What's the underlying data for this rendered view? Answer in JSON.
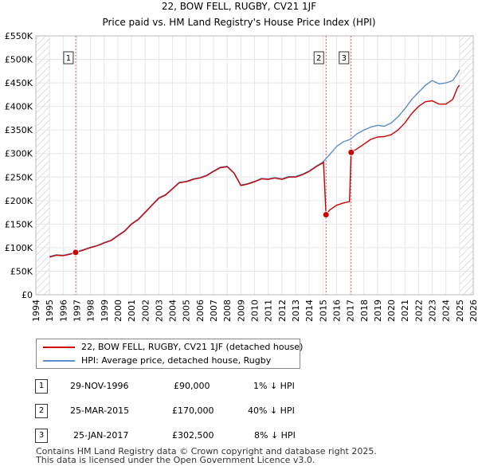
{
  "title": "22, BOW FELL, RUGBY, CV21 1JF",
  "subtitle": "Price paid vs. HM Land Registry's House Price Index (HPI)",
  "chart_data": {
    "type": "line",
    "title": "22, BOW FELL, RUGBY, CV21 1JF",
    "subtitle": "Price paid vs. HM Land Registry's House Price Index (HPI)",
    "xlabel": "",
    "ylabel": "",
    "xlim": [
      1994,
      2026
    ],
    "ylim": [
      0,
      550000
    ],
    "grid": true,
    "yticks": [
      0,
      50000,
      100000,
      150000,
      200000,
      250000,
      300000,
      350000,
      400000,
      450000,
      500000,
      550000
    ],
    "ytick_labels": [
      "£0",
      "£50K",
      "£100K",
      "£150K",
      "£200K",
      "£250K",
      "£300K",
      "£350K",
      "£400K",
      "£450K",
      "£500K",
      "£550K"
    ],
    "xticks": [
      1994,
      1995,
      1996,
      1997,
      1998,
      1999,
      2000,
      2001,
      2002,
      2003,
      2004,
      2005,
      2006,
      2007,
      2008,
      2009,
      2010,
      2011,
      2012,
      2013,
      2014,
      2015,
      2016,
      2017,
      2018,
      2019,
      2020,
      2021,
      2022,
      2023,
      2024,
      2025,
      2026
    ],
    "xtick_labels": [
      "1994",
      "1995",
      "1996",
      "1997",
      "1998",
      "1999",
      "2000",
      "2001",
      "2002",
      "2003",
      "2004",
      "2005",
      "2006",
      "2007",
      "2008",
      "2009",
      "2010",
      "2011",
      "2012",
      "2013",
      "2014",
      "2015",
      "2016",
      "2017",
      "2018",
      "2019",
      "2020",
      "2021",
      "2022",
      "2023",
      "2024",
      "2025",
      "2026"
    ],
    "series": [
      {
        "name": "22, BOW FELL, RUGBY, CV21 1JF (detached house)",
        "color": "#cc0000",
        "x": [
          1995.0,
          1995.5,
          1996.0,
          1996.5,
          1996.91,
          1997.5,
          1998.0,
          1998.5,
          1999.0,
          1999.5,
          2000.0,
          2000.5,
          2001.0,
          2001.5,
          2002.0,
          2002.5,
          2003.0,
          2003.5,
          2004.0,
          2004.5,
          2005.0,
          2005.5,
          2006.0,
          2006.5,
          2007.0,
          2007.5,
          2008.0,
          2008.5,
          2009.0,
          2009.5,
          2010.0,
          2010.5,
          2011.0,
          2011.5,
          2012.0,
          2012.5,
          2013.0,
          2013.5,
          2014.0,
          2014.5,
          2015.0,
          2015.05,
          2015.23,
          2015.5,
          2016.0,
          2016.5,
          2016.95,
          2017.07,
          2017.5,
          2018.0,
          2018.5,
          2019.0,
          2019.5,
          2020.0,
          2020.5,
          2021.0,
          2021.5,
          2022.0,
          2022.5,
          2023.0,
          2023.5,
          2024.0,
          2024.5,
          2024.85,
          2025.0
        ],
        "values": [
          80000,
          84000,
          83000,
          86000,
          90000,
          95000,
          100000,
          104000,
          110000,
          115000,
          125000,
          135000,
          150000,
          160000,
          175000,
          190000,
          205000,
          212000,
          225000,
          238000,
          240000,
          245000,
          248000,
          253000,
          262000,
          270000,
          272000,
          258000,
          232000,
          235000,
          240000,
          246000,
          245000,
          248000,
          245000,
          250000,
          250000,
          255000,
          262000,
          272000,
          280000,
          282000,
          170000,
          180000,
          190000,
          195000,
          198000,
          302500,
          310000,
          320000,
          330000,
          335000,
          336000,
          340000,
          350000,
          365000,
          385000,
          400000,
          410000,
          412000,
          405000,
          405000,
          415000,
          440000,
          445000
        ]
      },
      {
        "name": "HPI: Average price, detached house, Rugby",
        "color": "#5b8ec8",
        "x": [
          1995.0,
          1995.5,
          1996.0,
          1996.5,
          1996.91,
          1997.5,
          1998.0,
          1998.5,
          1999.0,
          1999.5,
          2000.0,
          2000.5,
          2001.0,
          2001.5,
          2002.0,
          2002.5,
          2003.0,
          2003.5,
          2004.0,
          2004.5,
          2005.0,
          2005.5,
          2006.0,
          2006.5,
          2007.0,
          2007.5,
          2008.0,
          2008.5,
          2009.0,
          2009.5,
          2010.0,
          2010.5,
          2011.0,
          2011.5,
          2012.0,
          2012.5,
          2013.0,
          2013.5,
          2014.0,
          2014.5,
          2015.0,
          2015.5,
          2016.0,
          2016.5,
          2017.0,
          2017.5,
          2018.0,
          2018.5,
          2019.0,
          2019.5,
          2020.0,
          2020.5,
          2021.0,
          2021.5,
          2022.0,
          2022.5,
          2023.0,
          2023.5,
          2024.0,
          2024.5,
          2024.85,
          2025.0
        ],
        "values": [
          81000,
          85000,
          84000,
          87000,
          91000,
          96000,
          101000,
          105000,
          111000,
          116000,
          126000,
          136000,
          151000,
          161000,
          176000,
          191000,
          206000,
          213000,
          226000,
          239000,
          241000,
          246000,
          249000,
          254000,
          263000,
          271000,
          273000,
          259000,
          233000,
          236000,
          241000,
          247000,
          246000,
          249000,
          246000,
          251000,
          251000,
          256000,
          263000,
          273000,
          282000,
          298000,
          315000,
          325000,
          330000,
          342000,
          350000,
          356000,
          360000,
          358000,
          365000,
          378000,
          395000,
          415000,
          430000,
          445000,
          455000,
          448000,
          450000,
          455000,
          470000,
          478000
        ]
      }
    ],
    "sales": [
      {
        "label": "1",
        "x": 1996.91,
        "value": 90000
      },
      {
        "label": "2",
        "x": 2015.23,
        "value": 170000
      },
      {
        "label": "3",
        "x": 2017.07,
        "value": 302500
      }
    ]
  },
  "legend": {
    "property_label": "22, BOW FELL, RUGBY, CV21 1JF (detached house)",
    "hpi_label": "HPI: Average price, detached house, Rugby"
  },
  "transactions": [
    {
      "num": "1",
      "date": "29-NOV-1996",
      "price": "£90,000",
      "hpi": "1% ↓ HPI"
    },
    {
      "num": "2",
      "date": "25-MAR-2015",
      "price": "£170,000",
      "hpi": "40% ↓ HPI"
    },
    {
      "num": "3",
      "date": "25-JAN-2017",
      "price": "£302,500",
      "hpi": "8% ↓ HPI"
    }
  ],
  "footer": {
    "line1": "Contains HM Land Registry data © Crown copyright and database right 2025.",
    "line2": "This data is licensed under the Open Government Licence v3.0."
  },
  "colors": {
    "property": "#cc0000",
    "hpi": "#5b8ec8",
    "hatch": "#dddddd",
    "vline": "#e06060"
  }
}
